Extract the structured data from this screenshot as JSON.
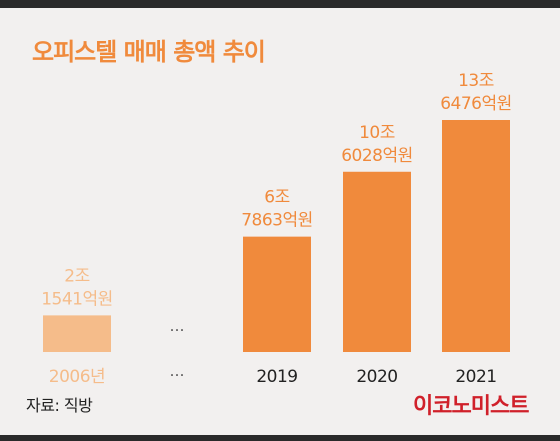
{
  "title": "오피스텔 매매 총액 추이",
  "source": "자료: 직방",
  "logo": "이코노미스트",
  "ellipsis": "…",
  "colors": {
    "bar": "#f08a3c",
    "bar_faded": "#f5bc8a",
    "label": "#f08a3c",
    "label_faded": "#f5bc8a"
  },
  "chart_data": {
    "type": "bar",
    "categories": [
      "2006년",
      "2019",
      "2020",
      "2021"
    ],
    "values": [
      21541,
      67863,
      106028,
      136476
    ],
    "unit": "억원",
    "value_labels": [
      [
        "2조",
        "1541억원"
      ],
      [
        "6조",
        "7863억원"
      ],
      [
        "10조",
        "6028억원"
      ],
      [
        "13조",
        "6476억원"
      ]
    ],
    "faded": [
      true,
      false,
      false,
      false
    ],
    "ellipsis_after_index": 0,
    "ylim": [
      0,
      136476
    ],
    "grid": false,
    "legend": "none"
  }
}
